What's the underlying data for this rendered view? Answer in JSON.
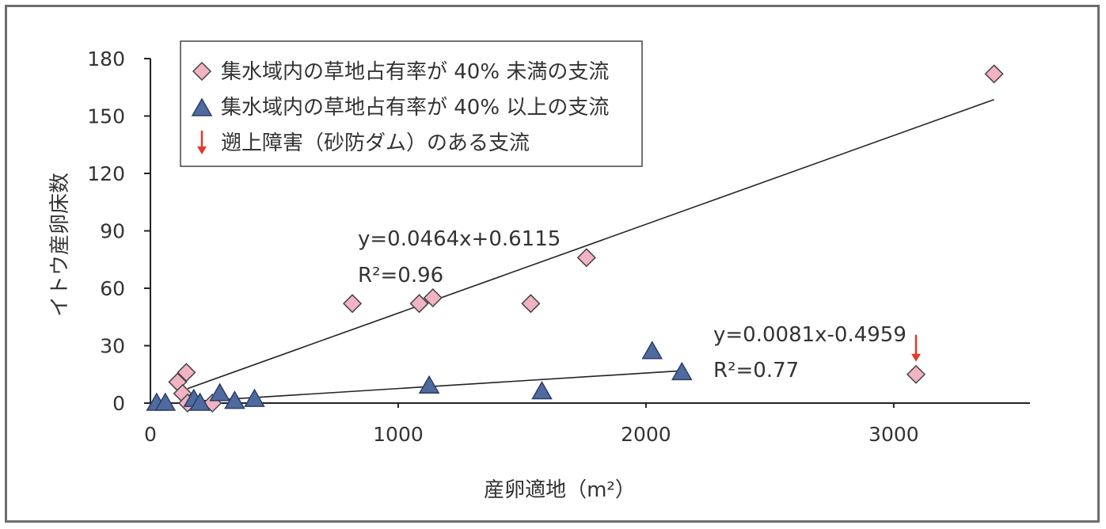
{
  "chart_data": {
    "type": "scatter",
    "xlabel": "産卵適地（m²）",
    "ylabel": "イトウ産卵床数",
    "xlim": [
      0,
      3550
    ],
    "ylim": [
      0,
      180
    ],
    "x_ticks": [
      "0",
      "1000",
      "2000",
      "3000"
    ],
    "y_ticks": [
      "0",
      "30",
      "60",
      "90",
      "120",
      "150",
      "180"
    ],
    "x_tick_values": [
      0,
      1000,
      2000,
      3000
    ],
    "y_tick_values": [
      0,
      30,
      60,
      90,
      120,
      150,
      180
    ],
    "grid": false,
    "legend_position": "top-left",
    "legend": [
      "集水域内の草地占有率が 40% 未満の支流",
      "集水域内の草地占有率が 40% 以上の支流",
      "遡上障害（砂防ダム）のある支流"
    ],
    "series": [
      {
        "name": "集水域内の草地占有率が 40% 未満の支流",
        "marker": "diamond",
        "color": "#f2b3c3",
        "points": [
          [
            110,
            11
          ],
          [
            130,
            5
          ],
          [
            145,
            16
          ],
          [
            150,
            0
          ],
          [
            250,
            0
          ],
          [
            815,
            52
          ],
          [
            1085,
            52
          ],
          [
            1140,
            55
          ],
          [
            1535,
            52
          ],
          [
            1760,
            76
          ],
          [
            3090,
            15
          ],
          [
            3405,
            172
          ]
        ]
      },
      {
        "name": "集水域内の草地占有率が 40% 以上の支流",
        "marker": "triangle",
        "color": "#4f6a9e",
        "points": [
          [
            25,
            0
          ],
          [
            60,
            0
          ],
          [
            175,
            2
          ],
          [
            200,
            0
          ],
          [
            280,
            5
          ],
          [
            340,
            1
          ],
          [
            420,
            2
          ],
          [
            1125,
            9
          ],
          [
            1580,
            6
          ],
          [
            2025,
            27
          ],
          [
            2145,
            16
          ]
        ]
      }
    ],
    "trendlines": [
      {
        "name": "diamond-fit",
        "slope": 0.0464,
        "intercept": 0.6115,
        "x_range": [
          150,
          3405
        ],
        "equation": "y=0.0464x+0.6115",
        "r2": "R²=0.96"
      },
      {
        "name": "triangle-fit",
        "slope": 0.0081,
        "intercept": -0.4959,
        "x_range": [
          170,
          2145
        ],
        "equation": "y=0.0081x-0.4959",
        "r2": "R²=0.77"
      }
    ],
    "annotations": [
      {
        "type": "arrow",
        "color": "#e03a2a",
        "target": [
          3090,
          15
        ],
        "meaning": "遡上障害（砂防ダム）のある支流"
      }
    ]
  },
  "colors": {
    "line": "#222222",
    "axis": "#222222",
    "arrow": "#e03a2a"
  }
}
